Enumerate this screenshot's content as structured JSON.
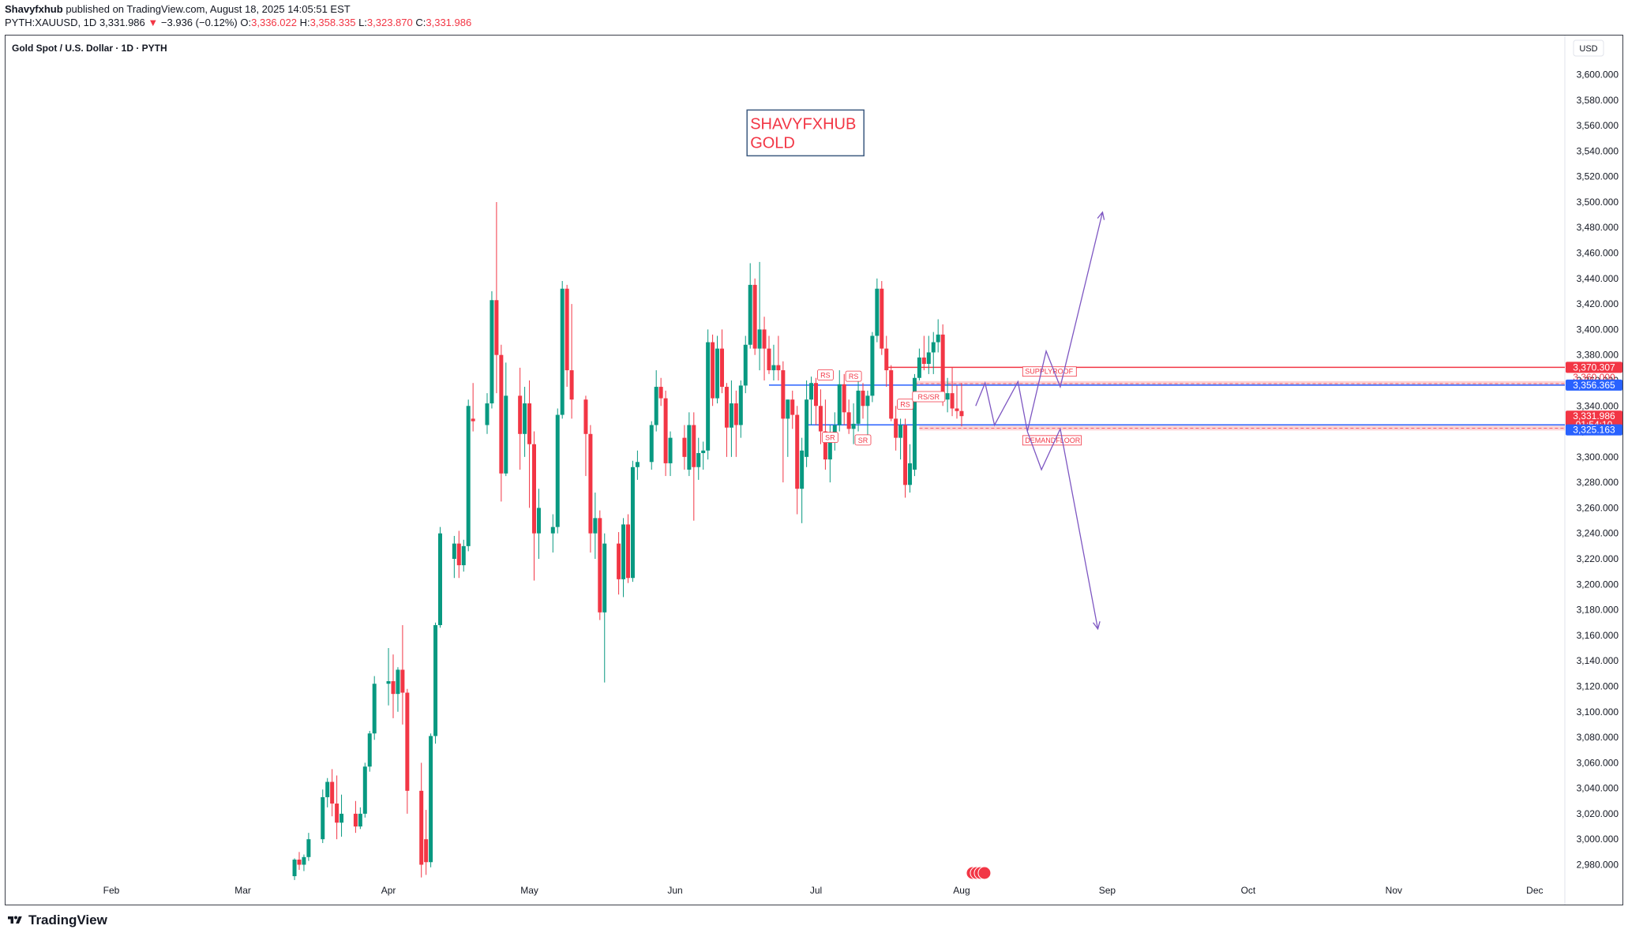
{
  "header": {
    "author": "Shavyfxhub",
    "published_text": "published on TradingView.com, August 18, 2025 14:05:51 EST",
    "symbol": "PYTH:XAUUSD, 1D",
    "last": "3,331.986",
    "change_arrow": "▼",
    "change": "−3.936 (−0.12%)",
    "o_label": "O:",
    "o": "3,336.022",
    "h_label": "H:",
    "h": "3,358.335",
    "l_label": "L:",
    "l": "3,323.870",
    "c_label": "C:",
    "c": "3,331.986"
  },
  "footer": {
    "brand": "TradingView"
  },
  "colors": {
    "up": "#089981",
    "down": "#f23645",
    "blue": "#2962ff",
    "purple": "#7e57c2",
    "red_line": "#f23645"
  },
  "chart_data": {
    "type": "candlestick",
    "title": "Gold Spot / U.S. Dollar · 1D · PYTH",
    "currency": "USD",
    "ylim": [
      2965,
      3630
    ],
    "y_ticks": [
      2980,
      3000,
      3020,
      3040,
      3060,
      3080,
      3100,
      3120,
      3140,
      3160,
      3180,
      3200,
      3220,
      3240,
      3260,
      3280,
      3300,
      3320,
      3340,
      3360,
      3380,
      3400,
      3420,
      3440,
      3460,
      3480,
      3500,
      3520,
      3540,
      3560,
      3580,
      3600
    ],
    "x_months": [
      {
        "label": "Feb",
        "day": 0
      },
      {
        "label": "Mar",
        "day": 28
      },
      {
        "label": "Apr",
        "day": 59
      },
      {
        "label": "May",
        "day": 89
      },
      {
        "label": "Jun",
        "day": 120
      },
      {
        "label": "Jul",
        "day": 150
      },
      {
        "label": "Aug",
        "day": 181
      },
      {
        "label": "Sep",
        "day": 212
      },
      {
        "label": "Oct",
        "day": 242
      },
      {
        "label": "Nov",
        "day": 273
      },
      {
        "label": "Dec",
        "day": 303
      }
    ],
    "candles": [
      {
        "d": 39,
        "o": 2971,
        "h": 2985,
        "l": 2968,
        "c": 2984
      },
      {
        "d": 40,
        "o": 2984,
        "h": 2990,
        "l": 2976,
        "c": 2980
      },
      {
        "d": 41,
        "o": 2980,
        "h": 2988,
        "l": 2975,
        "c": 2986
      },
      {
        "d": 42,
        "o": 2986,
        "h": 3005,
        "l": 2983,
        "c": 3000
      },
      {
        "d": 45,
        "o": 3000,
        "h": 3039,
        "l": 2997,
        "c": 3033
      },
      {
        "d": 46,
        "o": 3033,
        "h": 3048,
        "l": 3025,
        "c": 3045
      },
      {
        "d": 47,
        "o": 3045,
        "h": 3055,
        "l": 3018,
        "c": 3028
      },
      {
        "d": 48,
        "o": 3028,
        "h": 3050,
        "l": 3000,
        "c": 3013
      },
      {
        "d": 49,
        "o": 3013,
        "h": 3035,
        "l": 3002,
        "c": 3020
      },
      {
        "d": 52,
        "o": 3020,
        "h": 3030,
        "l": 3005,
        "c": 3010
      },
      {
        "d": 53,
        "o": 3010,
        "h": 3025,
        "l": 3008,
        "c": 3020
      },
      {
        "d": 54,
        "o": 3020,
        "h": 3060,
        "l": 3017,
        "c": 3057
      },
      {
        "d": 55,
        "o": 3057,
        "h": 3085,
        "l": 3053,
        "c": 3083
      },
      {
        "d": 56,
        "o": 3083,
        "h": 3128,
        "l": 3078,
        "c": 3122
      },
      {
        "d": 59,
        "o": 3122,
        "h": 3150,
        "l": 3105,
        "c": 3124
      },
      {
        "d": 60,
        "o": 3124,
        "h": 3145,
        "l": 3095,
        "c": 3114
      },
      {
        "d": 61,
        "o": 3114,
        "h": 3135,
        "l": 3100,
        "c": 3133
      },
      {
        "d": 62,
        "o": 3133,
        "h": 3168,
        "l": 3090,
        "c": 3115
      },
      {
        "d": 63,
        "o": 3115,
        "h": 3118,
        "l": 3020,
        "c": 3038
      },
      {
        "d": 66,
        "o": 3038,
        "h": 3060,
        "l": 2970,
        "c": 2980
      },
      {
        "d": 67,
        "o": 3000,
        "h": 3023,
        "l": 2972,
        "c": 2982
      },
      {
        "d": 68,
        "o": 2982,
        "h": 3083,
        "l": 2978,
        "c": 3081
      },
      {
        "d": 69,
        "o": 3081,
        "h": 3170,
        "l": 3075,
        "c": 3168
      },
      {
        "d": 70,
        "o": 3168,
        "h": 3245,
        "l": 3166,
        "c": 3240
      },
      {
        "d": 73,
        "o": 3220,
        "h": 3238,
        "l": 3205,
        "c": 3232
      },
      {
        "d": 74,
        "o": 3232,
        "h": 3242,
        "l": 3205,
        "c": 3215
      },
      {
        "d": 75,
        "o": 3215,
        "h": 3235,
        "l": 3210,
        "c": 3230
      },
      {
        "d": 76,
        "o": 3230,
        "h": 3345,
        "l": 3226,
        "c": 3340
      },
      {
        "d": 77,
        "o": 3330,
        "h": 3358,
        "l": 3320,
        "c": 3328
      },
      {
        "d": 80,
        "o": 3325,
        "h": 3350,
        "l": 3318,
        "c": 3342
      },
      {
        "d": 81,
        "o": 3342,
        "h": 3430,
        "l": 3338,
        "c": 3423
      },
      {
        "d": 82,
        "o": 3423,
        "h": 3500,
        "l": 3350,
        "c": 3380
      },
      {
        "d": 83,
        "o": 3380,
        "h": 3388,
        "l": 3265,
        "c": 3287
      },
      {
        "d": 84,
        "o": 3287,
        "h": 3374,
        "l": 3285,
        "c": 3348
      },
      {
        "d": 87,
        "o": 3348,
        "h": 3370,
        "l": 3290,
        "c": 3318
      },
      {
        "d": 88,
        "o": 3318,
        "h": 3355,
        "l": 3300,
        "c": 3342
      },
      {
        "d": 89,
        "o": 3342,
        "h": 3360,
        "l": 3260,
        "c": 3310
      },
      {
        "d": 90,
        "o": 3310,
        "h": 3320,
        "l": 3203,
        "c": 3240
      },
      {
        "d": 91,
        "o": 3240,
        "h": 3275,
        "l": 3220,
        "c": 3260
      },
      {
        "d": 94,
        "o": 3240,
        "h": 3255,
        "l": 3225,
        "c": 3245
      },
      {
        "d": 95,
        "o": 3245,
        "h": 3338,
        "l": 3240,
        "c": 3333
      },
      {
        "d": 96,
        "o": 3333,
        "h": 3438,
        "l": 3330,
        "c": 3432
      },
      {
        "d": 97,
        "o": 3432,
        "h": 3435,
        "l": 3355,
        "c": 3368
      },
      {
        "d": 98,
        "o": 3368,
        "h": 3420,
        "l": 3330,
        "c": 3345
      },
      {
        "d": 101,
        "o": 3345,
        "h": 3348,
        "l": 3285,
        "c": 3318
      },
      {
        "d": 102,
        "o": 3318,
        "h": 3325,
        "l": 3225,
        "c": 3240
      },
      {
        "d": 103,
        "o": 3240,
        "h": 3272,
        "l": 3220,
        "c": 3252
      },
      {
        "d": 104,
        "o": 3252,
        "h": 3258,
        "l": 3172,
        "c": 3178
      },
      {
        "d": 105,
        "o": 3178,
        "h": 3240,
        "l": 3123,
        "c": 3232
      },
      {
        "d": 108,
        "o": 3232,
        "h": 3241,
        "l": 3192,
        "c": 3204
      },
      {
        "d": 109,
        "o": 3204,
        "h": 3252,
        "l": 3190,
        "c": 3247
      },
      {
        "d": 110,
        "o": 3247,
        "h": 3255,
        "l": 3201,
        "c": 3205
      },
      {
        "d": 111,
        "o": 3205,
        "h": 3297,
        "l": 3202,
        "c": 3292
      },
      {
        "d": 112,
        "o": 3292,
        "h": 3305,
        "l": 3282,
        "c": 3296
      },
      {
        "d": 115,
        "o": 3296,
        "h": 3328,
        "l": 3290,
        "c": 3325
      },
      {
        "d": 116,
        "o": 3325,
        "h": 3368,
        "l": 3320,
        "c": 3355
      },
      {
        "d": 117,
        "o": 3355,
        "h": 3362,
        "l": 3340,
        "c": 3346
      },
      {
        "d": 118,
        "o": 3346,
        "h": 3352,
        "l": 3285,
        "c": 3295
      },
      {
        "d": 119,
        "o": 3295,
        "h": 3320,
        "l": 3285,
        "c": 3315
      },
      {
        "d": 122,
        "o": 3315,
        "h": 3325,
        "l": 3290,
        "c": 3300
      },
      {
        "d": 123,
        "o": 3290,
        "h": 3335,
        "l": 3285,
        "c": 3325
      },
      {
        "d": 124,
        "o": 3325,
        "h": 3335,
        "l": 3250,
        "c": 3292
      },
      {
        "d": 125,
        "o": 3292,
        "h": 3315,
        "l": 3282,
        "c": 3303
      },
      {
        "d": 126,
        "o": 3303,
        "h": 3312,
        "l": 3290,
        "c": 3305
      },
      {
        "d": 127,
        "o": 3305,
        "h": 3400,
        "l": 3298,
        "c": 3390
      },
      {
        "d": 128,
        "o": 3390,
        "h": 3396,
        "l": 3340,
        "c": 3346
      },
      {
        "d": 129,
        "o": 3346,
        "h": 3395,
        "l": 3342,
        "c": 3385
      },
      {
        "d": 130,
        "o": 3385,
        "h": 3400,
        "l": 3350,
        "c": 3355
      },
      {
        "d": 131,
        "o": 3355,
        "h": 3358,
        "l": 3300,
        "c": 3323
      },
      {
        "d": 132,
        "o": 3323,
        "h": 3360,
        "l": 3300,
        "c": 3342
      },
      {
        "d": 133,
        "o": 3342,
        "h": 3352,
        "l": 3300,
        "c": 3325
      },
      {
        "d": 134,
        "o": 3325,
        "h": 3360,
        "l": 3315,
        "c": 3356
      },
      {
        "d": 135,
        "o": 3356,
        "h": 3395,
        "l": 3350,
        "c": 3388
      },
      {
        "d": 136,
        "o": 3388,
        "h": 3452,
        "l": 3385,
        "c": 3435
      },
      {
        "d": 137,
        "o": 3435,
        "h": 3440,
        "l": 3380,
        "c": 3385
      },
      {
        "d": 138,
        "o": 3385,
        "h": 3453,
        "l": 3368,
        "c": 3400
      },
      {
        "d": 139,
        "o": 3400,
        "h": 3410,
        "l": 3360,
        "c": 3385
      },
      {
        "d": 140,
        "o": 3385,
        "h": 3395,
        "l": 3365,
        "c": 3368
      },
      {
        "d": 141,
        "o": 3368,
        "h": 3388,
        "l": 3360,
        "c": 3372
      },
      {
        "d": 142,
        "o": 3372,
        "h": 3395,
        "l": 3360,
        "c": 3368
      },
      {
        "d": 143,
        "o": 3368,
        "h": 3375,
        "l": 3280,
        "c": 3330
      },
      {
        "d": 144,
        "o": 3330,
        "h": 3345,
        "l": 3300,
        "c": 3345
      },
      {
        "d": 145,
        "o": 3345,
        "h": 3352,
        "l": 3322,
        "c": 3333
      },
      {
        "d": 146,
        "o": 3333,
        "h": 3340,
        "l": 3255,
        "c": 3275
      },
      {
        "d": 147,
        "o": 3275,
        "h": 3315,
        "l": 3248,
        "c": 3305
      },
      {
        "d": 148,
        "o": 3300,
        "h": 3360,
        "l": 3292,
        "c": 3345
      },
      {
        "d": 149,
        "o": 3345,
        "h": 3363,
        "l": 3325,
        "c": 3358
      },
      {
        "d": 150,
        "o": 3358,
        "h": 3362,
        "l": 3325,
        "c": 3340
      },
      {
        "d": 151,
        "o": 3340,
        "h": 3353,
        "l": 3310,
        "c": 3320
      },
      {
        "d": 152,
        "o": 3320,
        "h": 3345,
        "l": 3290,
        "c": 3298
      },
      {
        "d": 153,
        "o": 3298,
        "h": 3325,
        "l": 3280,
        "c": 3315
      },
      {
        "d": 154,
        "o": 3315,
        "h": 3335,
        "l": 3305,
        "c": 3325
      },
      {
        "d": 155,
        "o": 3325,
        "h": 3368,
        "l": 3320,
        "c": 3357
      },
      {
        "d": 156,
        "o": 3357,
        "h": 3365,
        "l": 3325,
        "c": 3335
      },
      {
        "d": 157,
        "o": 3335,
        "h": 3345,
        "l": 3318,
        "c": 3322
      },
      {
        "d": 158,
        "o": 3322,
        "h": 3342,
        "l": 3310,
        "c": 3326
      },
      {
        "d": 159,
        "o": 3326,
        "h": 3365,
        "l": 3320,
        "c": 3352
      },
      {
        "d": 160,
        "o": 3352,
        "h": 3358,
        "l": 3330,
        "c": 3340
      },
      {
        "d": 161,
        "o": 3340,
        "h": 3352,
        "l": 3310,
        "c": 3348
      },
      {
        "d": 162,
        "o": 3348,
        "h": 3398,
        "l": 3343,
        "c": 3395
      },
      {
        "d": 163,
        "o": 3395,
        "h": 3440,
        "l": 3390,
        "c": 3432
      },
      {
        "d": 164,
        "o": 3432,
        "h": 3438,
        "l": 3380,
        "c": 3385
      },
      {
        "d": 165,
        "o": 3385,
        "h": 3395,
        "l": 3355,
        "c": 3368
      },
      {
        "d": 166,
        "o": 3368,
        "h": 3372,
        "l": 3328,
        "c": 3330
      },
      {
        "d": 167,
        "o": 3330,
        "h": 3340,
        "l": 3305,
        "c": 3315
      },
      {
        "d": 168,
        "o": 3315,
        "h": 3330,
        "l": 3298,
        "c": 3325
      },
      {
        "d": 169,
        "o": 3325,
        "h": 3330,
        "l": 3268,
        "c": 3278
      },
      {
        "d": 170,
        "o": 3278,
        "h": 3310,
        "l": 3272,
        "c": 3295
      },
      {
        "d": 171,
        "o": 3290,
        "h": 3365,
        "l": 3285,
        "c": 3362
      },
      {
        "d": 172,
        "o": 3362,
        "h": 3385,
        "l": 3360,
        "c": 3378
      },
      {
        "d": 173,
        "o": 3378,
        "h": 3395,
        "l": 3368,
        "c": 3373
      },
      {
        "d": 174,
        "o": 3373,
        "h": 3395,
        "l": 3365,
        "c": 3382
      },
      {
        "d": 175,
        "o": 3382,
        "h": 3398,
        "l": 3365,
        "c": 3390
      },
      {
        "d": 176,
        "o": 3390,
        "h": 3408,
        "l": 3382,
        "c": 3396
      },
      {
        "d": 177,
        "o": 3396,
        "h": 3404,
        "l": 3340,
        "c": 3345
      },
      {
        "d": 178,
        "o": 3345,
        "h": 3362,
        "l": 3335,
        "c": 3350
      },
      {
        "d": 179,
        "o": 3350,
        "h": 3370,
        "l": 3332,
        "c": 3338
      },
      {
        "d": 180,
        "o": 3338,
        "h": 3356,
        "l": 3330,
        "c": 3336
      },
      {
        "d": 181,
        "o": 3336,
        "h": 3358,
        "l": 3324,
        "c": 3332
      }
    ],
    "levels": [
      {
        "name": "SUPPLYROOF",
        "price": 3370.307,
        "label": "3,370.307",
        "style": "red-line"
      },
      {
        "name": "supply-zone",
        "price": 3357.5,
        "style": "red-zone"
      },
      {
        "name": "resistance",
        "price": 3356.365,
        "label": "3,356.365",
        "style": "blue-line"
      },
      {
        "name": "support",
        "price": 3325.163,
        "label": "3,325.163",
        "style": "blue-line"
      },
      {
        "name": "DEMANDFLOOR",
        "price": 3322.5,
        "style": "red-zone"
      }
    ],
    "current_price": {
      "price": 3331.986,
      "label": "3,331.986",
      "countdown": "01:54:10"
    },
    "hidden_price_label": "3,360.000",
    "markers": [
      {
        "text": "RS",
        "day": 152,
        "price": 3364
      },
      {
        "text": "SR",
        "day": 153,
        "price": 3315
      },
      {
        "text": "RS",
        "day": 158,
        "price": 3363
      },
      {
        "text": "SR",
        "day": 160,
        "price": 3313
      },
      {
        "text": "RS",
        "day": 169,
        "price": 3341
      },
      {
        "text": "RS/SR",
        "day": 174,
        "price": 3347
      }
    ],
    "zone_labels": [
      {
        "text": "SUPPLYROOF",
        "day": 194,
        "price": 3367
      },
      {
        "text": "DEMANDFLOOR",
        "day": 194,
        "price": 3313
      }
    ],
    "projection": [
      {
        "day": 184,
        "price": 3340
      },
      {
        "day": 186,
        "price": 3358
      },
      {
        "day": 188,
        "price": 3325
      },
      {
        "day": 193,
        "price": 3359
      },
      {
        "day": 195,
        "price": 3320
      },
      {
        "day": 199,
        "price": 3383
      },
      {
        "day": 202,
        "price": 3355
      },
      {
        "day": 211,
        "price": 3492
      }
    ],
    "projection_down": [
      {
        "day": 195,
        "price": 3320
      },
      {
        "day": 198,
        "price": 3290
      },
      {
        "day": 202,
        "price": 3322
      },
      {
        "day": 210,
        "price": 3165
      }
    ],
    "watermark": {
      "line1": "SHAVYFXHUB",
      "line2": "GOLD",
      "day": 136,
      "price": 3540
    }
  }
}
